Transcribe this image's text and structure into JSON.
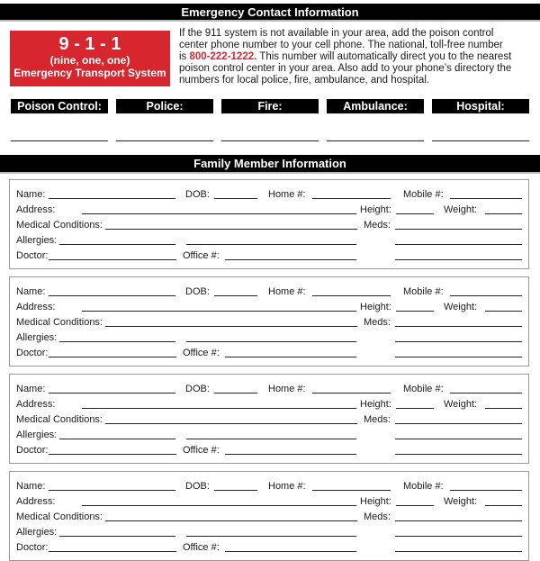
{
  "emergency": {
    "title": "Emergency Contact Information",
    "box": {
      "number": "9 - 1 - 1",
      "pronunciation": "(nine, one, one)",
      "system": "Emergency Transport System"
    },
    "intro_before": "If the 911 system is not available in your area, add the poison control center phone number to your cell phone. The national, toll-free number is ",
    "phone": "800-222-1222.",
    "intro_after": " This number will automatically direct you to the nearest poison control center in your area. Also add to your phone’s directory the numbers for local police, fire, ambulance, and hospital.",
    "contacts": [
      "Poison Control:",
      "Police:",
      "Fire:",
      "Ambulance:",
      "Hospital:"
    ],
    "accent": "#d7262e"
  },
  "family": {
    "title": "Family Member Information",
    "labels": {
      "name": "Name:",
      "dob": "DOB:",
      "home": "Home #:",
      "mobile": "Mobile #:",
      "address": "Address:",
      "height": "Height:",
      "weight": "Weight:",
      "medical": "Medical Conditions:",
      "meds": "Meds:",
      "allergies": "Allergies:",
      "doctor": "Doctor:",
      "office": "Office #:"
    },
    "members": [
      {},
      {},
      {},
      {}
    ]
  }
}
